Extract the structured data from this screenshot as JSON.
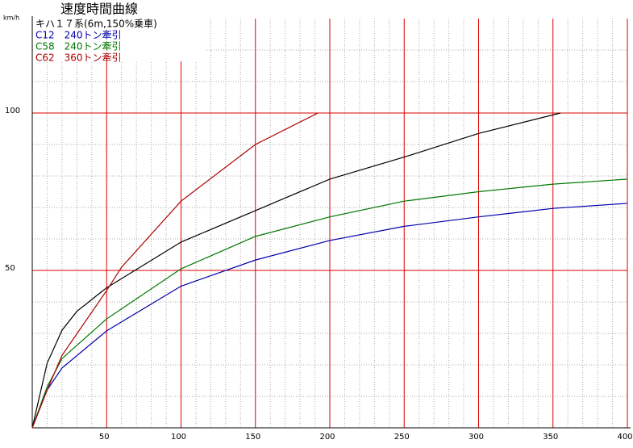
{
  "chart_data": {
    "type": "line",
    "title": "速度時間曲線",
    "y_label": "km/h",
    "xlim": [
      0,
      400
    ],
    "ylim": [
      0,
      130
    ],
    "xticks": [
      50,
      100,
      150,
      200,
      250,
      300,
      350,
      400
    ],
    "yticks": [
      50,
      100
    ],
    "minor_xticks": [
      10,
      20,
      30,
      40,
      60,
      70,
      80,
      90,
      110,
      120,
      130,
      140,
      160,
      170,
      180,
      190,
      210,
      220,
      230,
      240,
      260,
      270,
      280,
      290,
      310,
      320,
      330,
      340,
      360,
      370,
      380,
      390
    ],
    "minor_yticks": [
      10,
      20,
      30,
      40,
      60,
      70,
      80,
      90,
      110,
      120
    ],
    "grid": true,
    "grid_color": "#dd0000",
    "minor_grid_color": "#aaaaaa",
    "series": [
      {
        "name": "キハ１７系(6m,150%乗車)",
        "color": "#000000",
        "x": [
          0,
          10,
          20,
          30,
          50,
          100,
          150,
          200,
          250,
          300,
          355
        ],
        "values": [
          0,
          20.5,
          31,
          37,
          44.5,
          59,
          69,
          79,
          86,
          93.5,
          100
        ]
      },
      {
        "name": "C12　240トン牽引",
        "color": "#0000aa",
        "x": [
          0,
          10,
          20,
          50,
          100,
          150,
          200,
          250,
          300,
          350,
          400
        ],
        "values": [
          0,
          12,
          19,
          30.8,
          45,
          53.3,
          59.5,
          64,
          67,
          69.7,
          71.3
        ]
      },
      {
        "name": "C58　240トン牽引",
        "color": "#007700",
        "x": [
          0,
          10,
          20,
          50,
          100,
          150,
          200,
          250,
          300,
          350,
          400
        ],
        "values": [
          0,
          13,
          22,
          34.6,
          50.5,
          60.8,
          67,
          72,
          75,
          77.4,
          79
        ]
      },
      {
        "name": "C62　360トン牽引",
        "color": "#aa0000",
        "x": [
          0,
          10,
          20,
          50,
          60,
          100,
          150,
          192
        ],
        "values": [
          0,
          12,
          23,
          43.6,
          51,
          72,
          90,
          100
        ]
      }
    ]
  }
}
